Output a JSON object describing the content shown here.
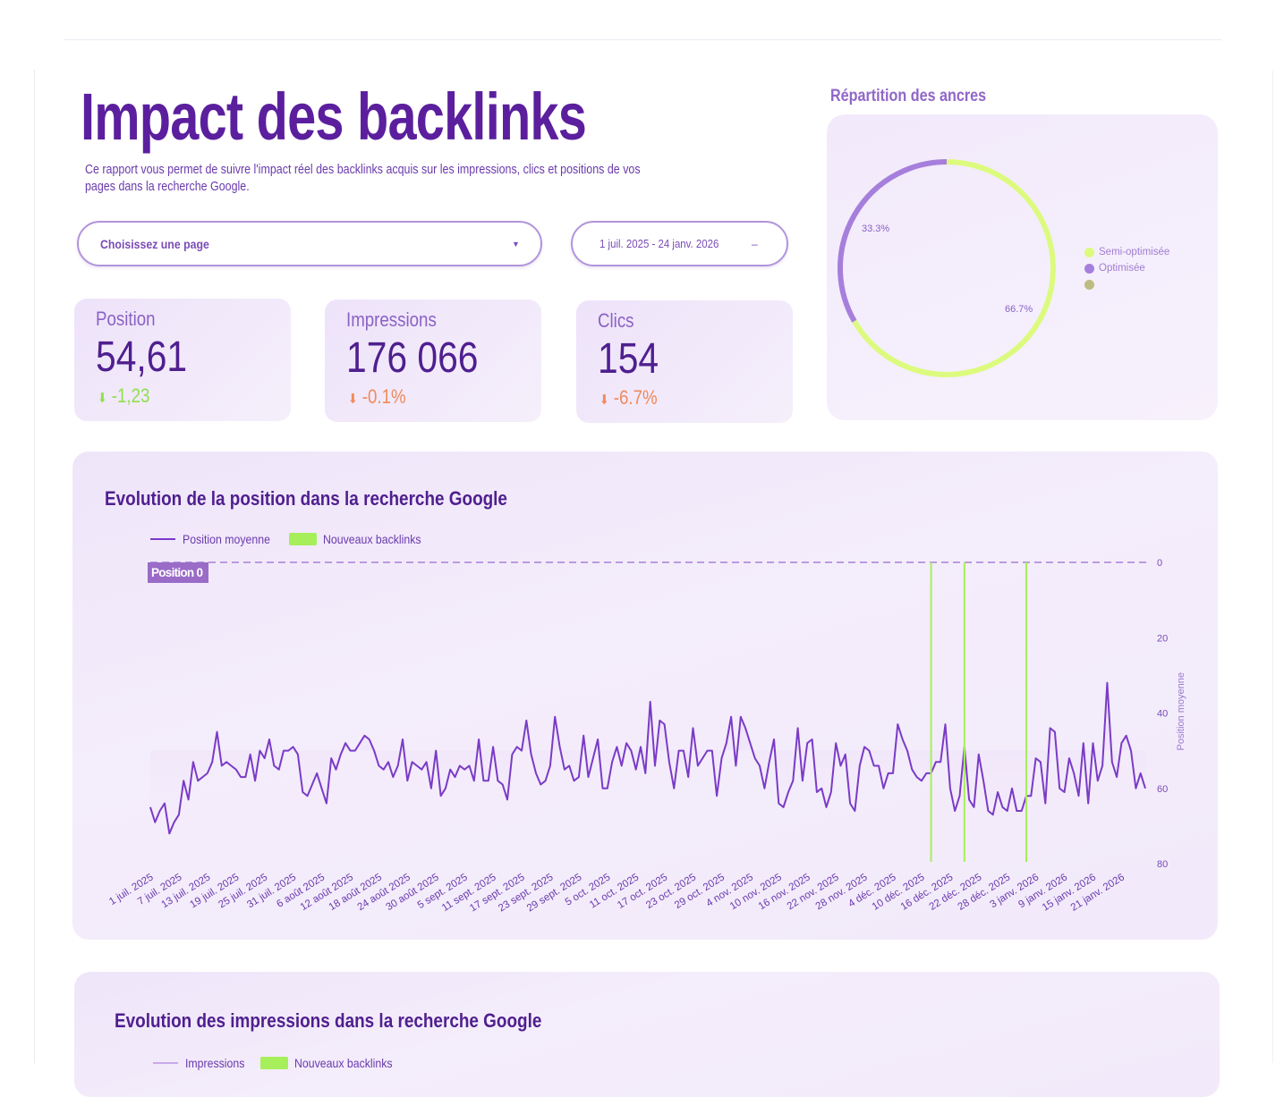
{
  "header": {
    "title": "Impact des backlinks",
    "description": "Ce rapport vous permet de suivre l'impact réel des backlinks acquis sur les impressions, clics et positions de vos pages dans la recherche Google."
  },
  "filters": {
    "page_select_placeholder": "Choisissez une page",
    "date_range": "1 juil. 2025 - 24 janv. 2026"
  },
  "kpis": [
    {
      "label": "Position",
      "value": "54,61",
      "delta": "-1,23",
      "delta_color": "#8fe04a",
      "arrow_color": "#8fe04a"
    },
    {
      "label": "Impressions",
      "value": "176 066",
      "delta": "-0.1%",
      "delta_color": "#f08a5a",
      "arrow_color": "#f08a5a"
    },
    {
      "label": "Clics",
      "value": "154",
      "delta": "-6.7%",
      "delta_color": "#f08a5a",
      "arrow_color": "#f08a5a"
    }
  ],
  "anchors": {
    "title": "Répartition des ancres",
    "chart_data": {
      "type": "pie",
      "slices": [
        {
          "name": "Semi-optimisée",
          "value": 66.7,
          "label": "66.7%",
          "color": "#dcfb7e"
        },
        {
          "name": "Optimisée",
          "value": 33.3,
          "label": "33.3%",
          "color": "#a67fdc"
        },
        {
          "name": "",
          "value": 0,
          "label": "",
          "color": "#bcbc84"
        }
      ],
      "legend": "right"
    }
  },
  "position_chart": {
    "title": "Evolution de la position dans la recherche Google",
    "legend": {
      "line": "Position moyenne",
      "bars": "Nouveaux backlinks"
    },
    "reference_label": "Position 0",
    "chart_data": {
      "type": "line",
      "x_range": [
        "2025-07-01",
        "2026-01-24"
      ],
      "ylabel": "Position moyenne",
      "ylim": [
        0,
        80
      ],
      "y_inverted": true,
      "y_ticks": [
        "0",
        "20",
        "40",
        "60",
        "80"
      ],
      "x_ticks": [
        "1 juil. 2025",
        "7 juil. 2025",
        "13 juil. 2025",
        "19 juil. 2025",
        "25 juil. 2025",
        "31 juil. 2025",
        "6 août 2025",
        "12 août 2025",
        "18 août 2025",
        "24 août 2025",
        "30 août 2025",
        "5 sept. 2025",
        "11 sept. 2025",
        "17 sept. 2025",
        "23 sept. 2025",
        "29 sept. 2025",
        "5 oct. 2025",
        "11 oct. 2025",
        "17 oct. 2025",
        "23 oct. 2025",
        "29 oct. 2025",
        "4 nov. 2025",
        "10 nov. 2025",
        "16 nov. 2025",
        "22 nov. 2025",
        "28 nov. 2025",
        "4 déc. 2025",
        "10 déc. 2025",
        "16 déc. 2025",
        "22 déc. 2025",
        "28 déc. 2025",
        "3 janv. 2026",
        "9 janv. 2026",
        "15 janv. 2026",
        "21 janv. 2026"
      ],
      "series": [
        {
          "name": "Position moyenne",
          "color": "#7a3bc6",
          "values": [
            65,
            69,
            66,
            64,
            72,
            69,
            67,
            58,
            63,
            53,
            58,
            57,
            56,
            53,
            45,
            54,
            53,
            54,
            55,
            57,
            57,
            51,
            58,
            50,
            52,
            47,
            54,
            55,
            50,
            50,
            49,
            51,
            61,
            62,
            59,
            56,
            60,
            64,
            52,
            55,
            51,
            48,
            50,
            50,
            48,
            46,
            47,
            50,
            54,
            55,
            53,
            57,
            54,
            47,
            58,
            53,
            54,
            55,
            53,
            60,
            50,
            62,
            60,
            55,
            57,
            54,
            55,
            54,
            58,
            47,
            58,
            58,
            49,
            58,
            59,
            63,
            51,
            49,
            50,
            42,
            51,
            56,
            59,
            58,
            54,
            41,
            49,
            55,
            54,
            58,
            57,
            46,
            57,
            52,
            47,
            60,
            60,
            53,
            49,
            54,
            48,
            50,
            55,
            49,
            56,
            37,
            54,
            42,
            43,
            53,
            60,
            50,
            50,
            57,
            44,
            54,
            52,
            50,
            50,
            62,
            52,
            48,
            41,
            54,
            41,
            44,
            48,
            52,
            54,
            60,
            53,
            47,
            64,
            65,
            61,
            58,
            44,
            58,
            48,
            47,
            61,
            60,
            65,
            61,
            48,
            54,
            51,
            64,
            66,
            54,
            49,
            50,
            54,
            54,
            60,
            56,
            56,
            43,
            47,
            50,
            55,
            57,
            58,
            56,
            56,
            53,
            53,
            43,
            60,
            66,
            62,
            49,
            63,
            65,
            51,
            58,
            66,
            67,
            61,
            65,
            66,
            60,
            66,
            66,
            62,
            62,
            52,
            53,
            64,
            44,
            45,
            60,
            61,
            52,
            56,
            62,
            48,
            64,
            48,
            58,
            54,
            32,
            53,
            57,
            48,
            46,
            50,
            60,
            56,
            60
          ]
        }
      ],
      "backlinks": [
        "2025-12-12",
        "2025-12-19",
        "2026-01-01"
      ],
      "backlink_color": "#a6ef5a",
      "reference_line": 0
    }
  },
  "impressions_chart": {
    "title": "Evolution des impressions dans la recherche Google",
    "legend": {
      "line": "Impressions",
      "bars": "Nouveaux backlinks"
    }
  }
}
